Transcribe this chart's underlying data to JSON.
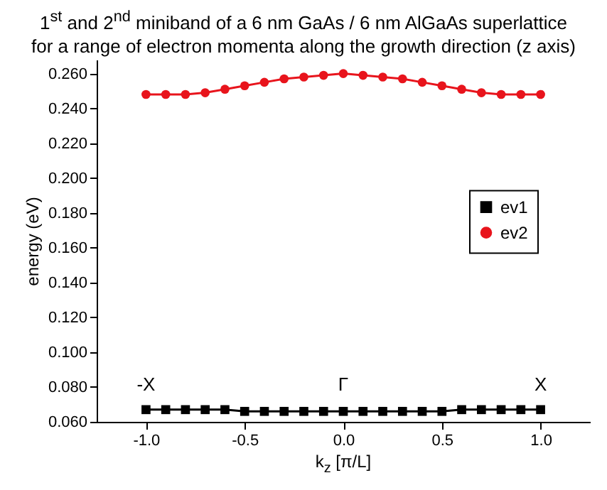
{
  "chart_data": {
    "type": "line",
    "title": "1$^{st}$ and 2$^{nd}$ miniband of a 6 nm GaAs / 6 nm AlGaAs superlattice\nfor a range of electron momenta along the growth direction (z axis)",
    "xlabel": "k$_{z}$ [π/L]",
    "ylabel": "energy (eV)",
    "x": [
      -1.0,
      -0.9,
      -0.8,
      -0.7,
      -0.6,
      -0.5,
      -0.4,
      -0.3,
      -0.2,
      -0.1,
      0.0,
      0.1,
      0.2,
      0.3,
      0.4,
      0.5,
      0.6,
      0.7,
      0.8,
      0.9,
      1.0
    ],
    "series": [
      {
        "name": "ev1",
        "color": "#000000",
        "marker": "square",
        "values": [
          0.067,
          0.067,
          0.067,
          0.067,
          0.067,
          0.066,
          0.066,
          0.066,
          0.066,
          0.066,
          0.066,
          0.066,
          0.066,
          0.066,
          0.066,
          0.066,
          0.067,
          0.067,
          0.067,
          0.067,
          0.067
        ]
      },
      {
        "name": "ev2",
        "color": "#e8141c",
        "marker": "circle",
        "values": [
          0.248,
          0.248,
          0.248,
          0.249,
          0.251,
          0.253,
          0.255,
          0.257,
          0.258,
          0.259,
          0.26,
          0.259,
          0.258,
          0.257,
          0.255,
          0.253,
          0.251,
          0.249,
          0.248,
          0.248,
          0.248
        ]
      }
    ],
    "xlim": [
      -1.25,
      1.25
    ],
    "xticks": [
      {
        "value": -1,
        "label": "-1.0"
      },
      {
        "value": -0.5,
        "label": "-0.5"
      },
      {
        "value": 0,
        "label": "0.0"
      },
      {
        "value": 0.5,
        "label": "0.5"
      },
      {
        "value": 1,
        "label": "1.0"
      }
    ],
    "ylim": [
      0.06,
      0.268
    ],
    "yticks": [
      {
        "value": 0.06,
        "label": "0.060"
      },
      {
        "value": 0.08,
        "label": "0.080"
      },
      {
        "value": 0.1,
        "label": "0.100"
      },
      {
        "value": 0.12,
        "label": "0.120"
      },
      {
        "value": 0.14,
        "label": "0.140"
      },
      {
        "value": 0.16,
        "label": "0.160"
      },
      {
        "value": 0.18,
        "label": "0.180"
      },
      {
        "value": 0.2,
        "label": "0.200"
      },
      {
        "value": 0.22,
        "label": "0.220"
      },
      {
        "value": 0.24,
        "label": "0.240"
      },
      {
        "value": 0.26,
        "label": "0.260"
      }
    ],
    "annotations": [
      "-X",
      "Γ",
      "X"
    ],
    "legend": "right",
    "grid": false,
    "line_style": "solid"
  }
}
